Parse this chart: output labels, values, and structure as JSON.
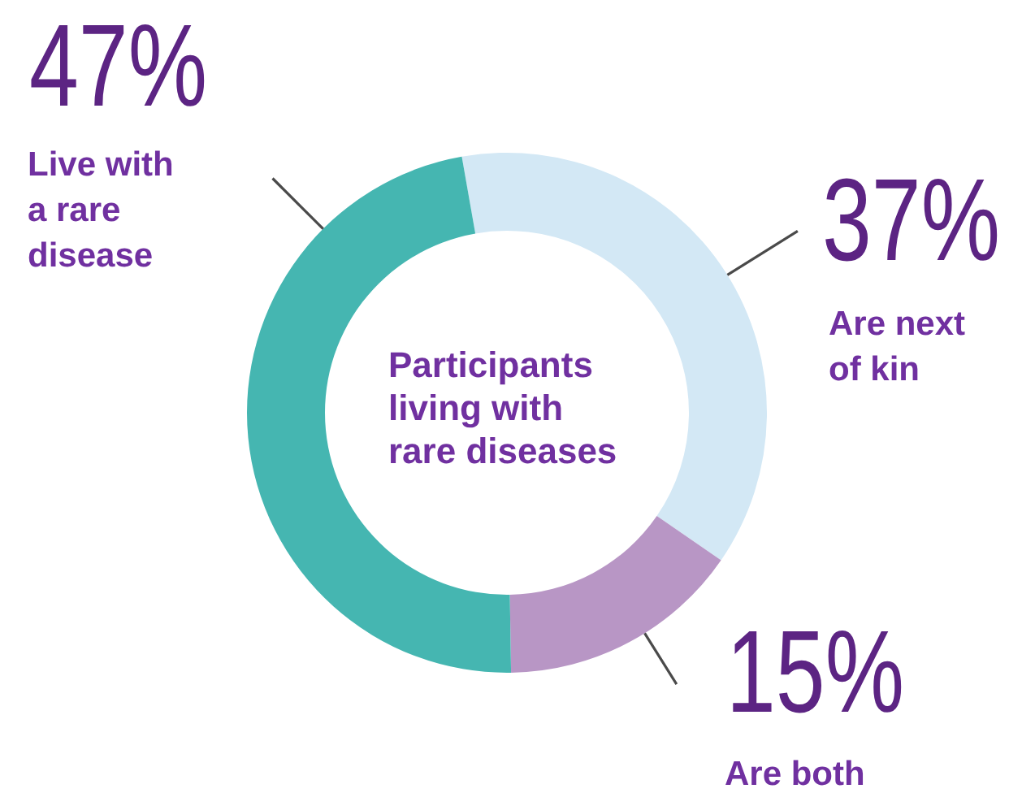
{
  "chart_data": {
    "type": "donut",
    "title": "Participants living with rare diseases",
    "categories": [
      "Are next of kin",
      "Are both",
      "Live with a rare disease"
    ],
    "values": [
      37,
      15,
      47
    ],
    "value_labels": [
      "37%",
      "15%",
      "47%"
    ],
    "colors": [
      "#d3e8f5",
      "#b896c5",
      "#45b6b1"
    ]
  }
}
